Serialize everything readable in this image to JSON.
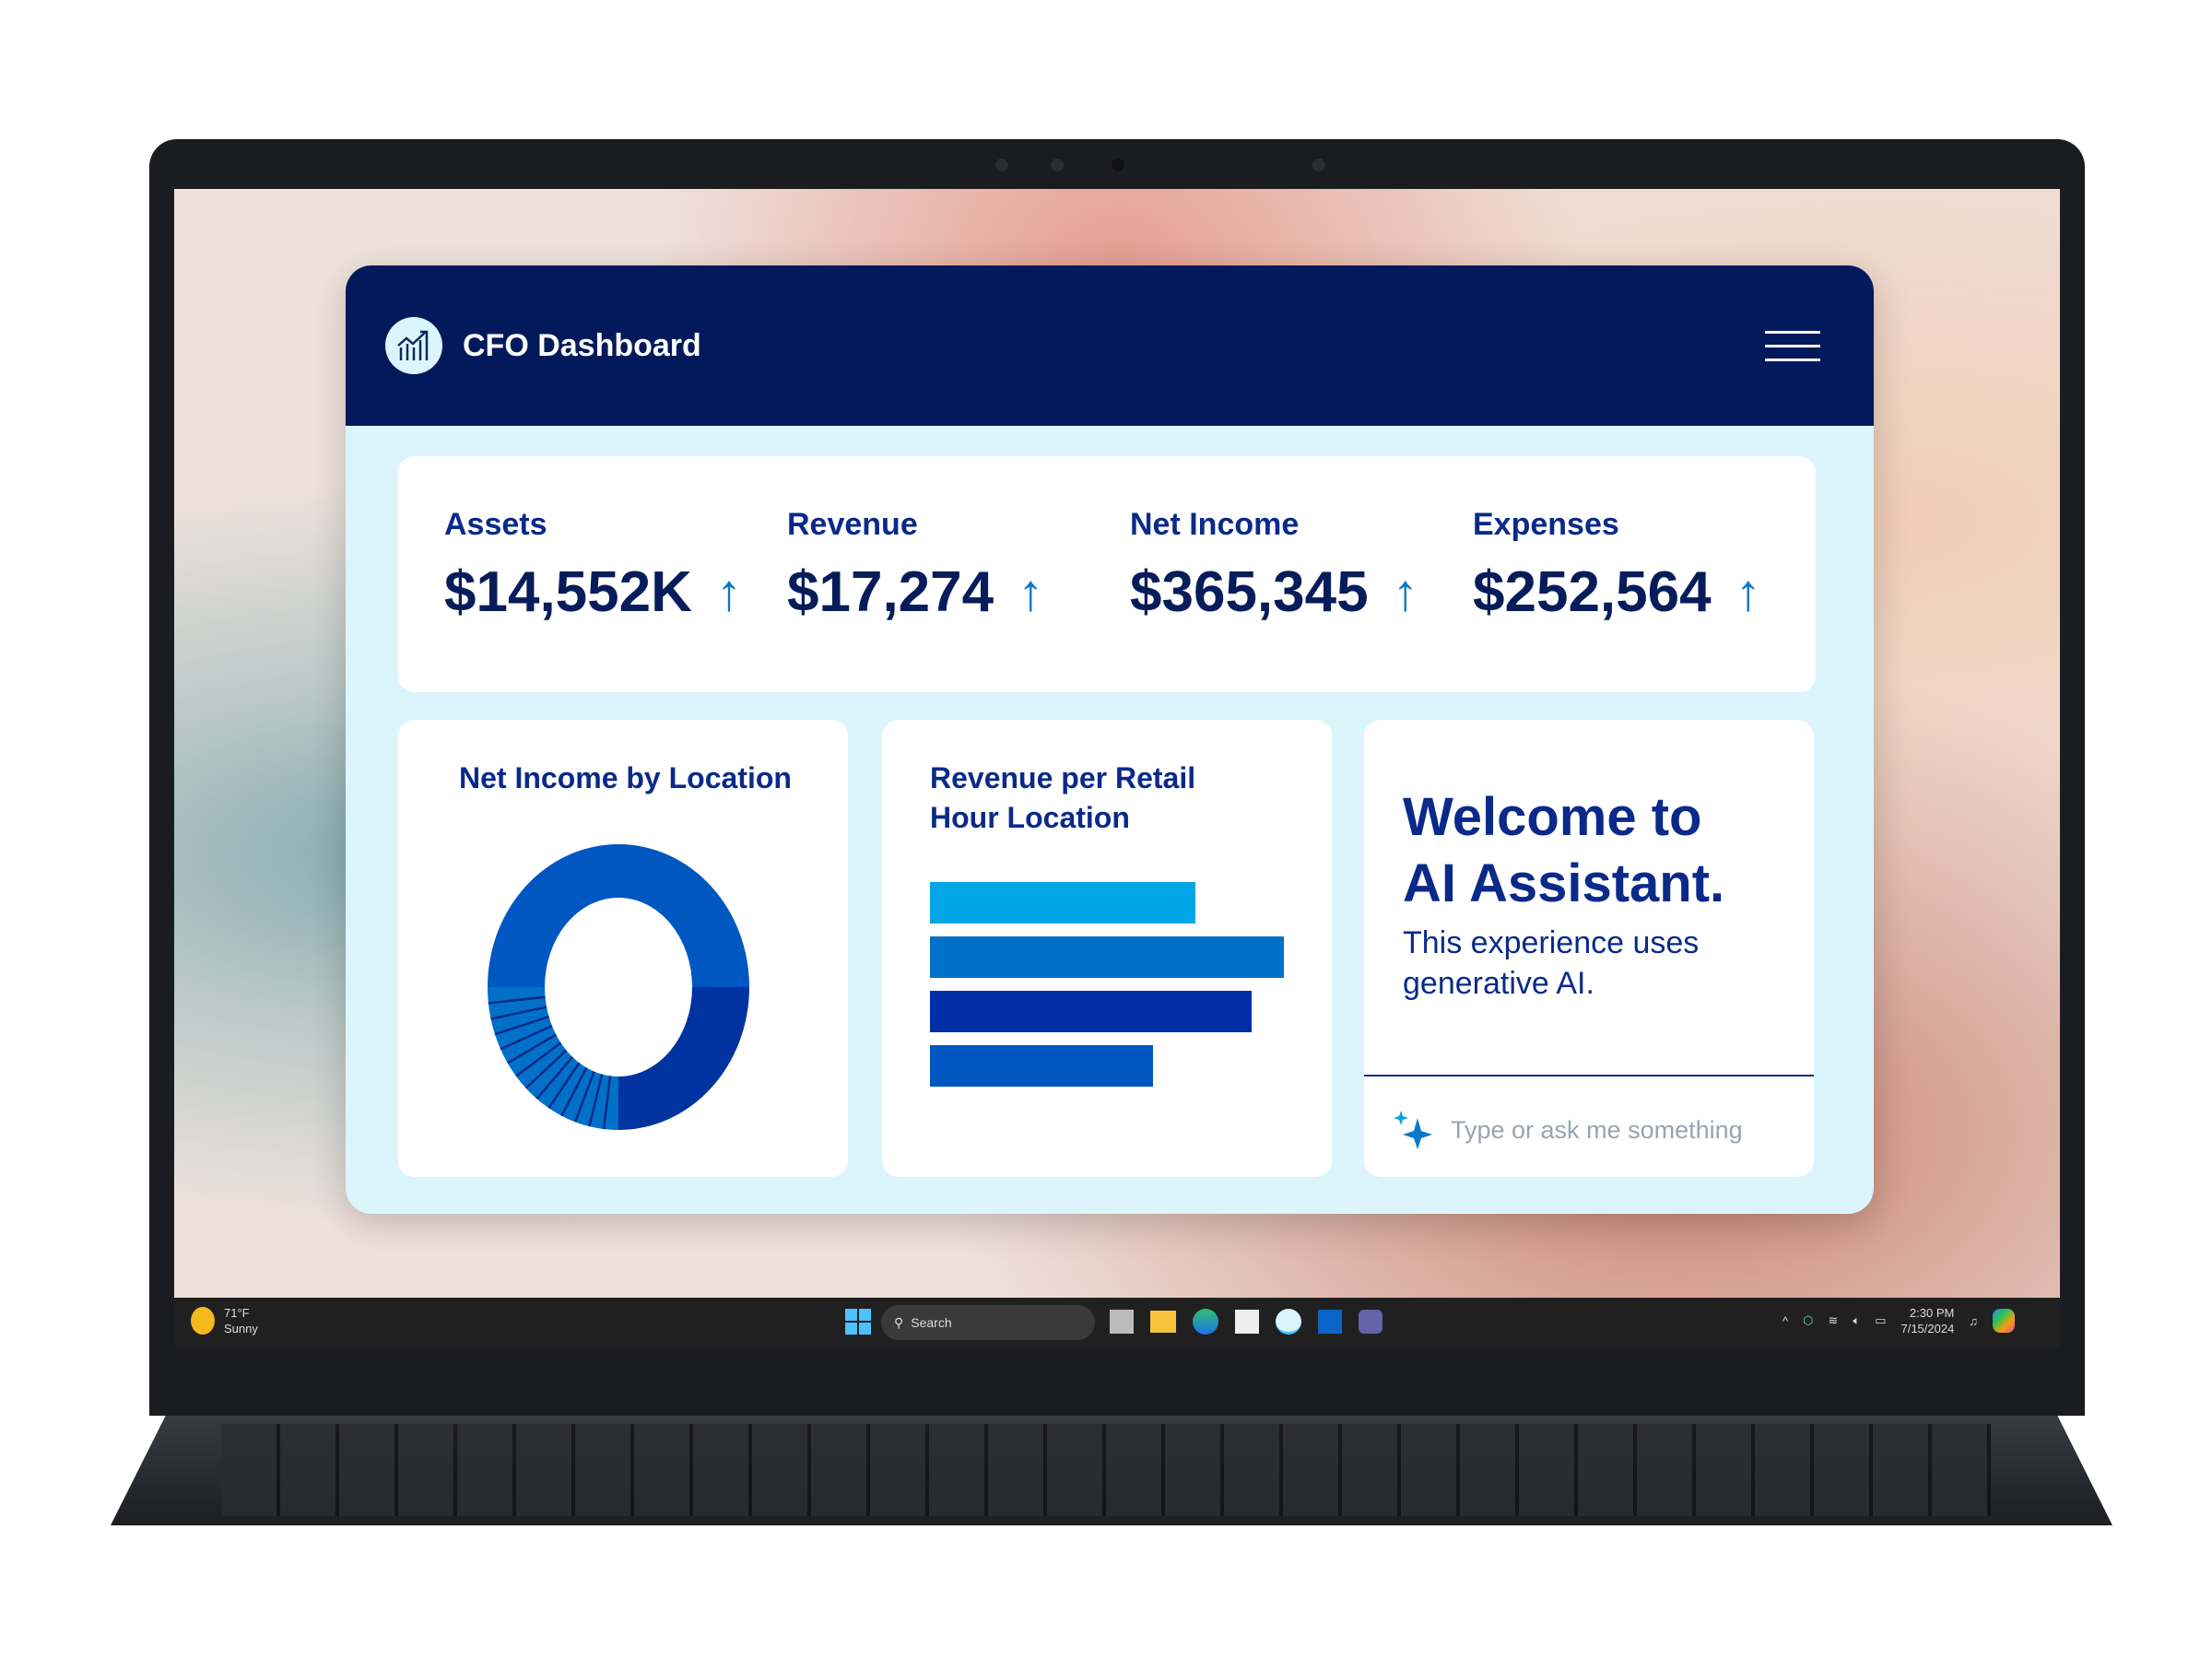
{
  "app": {
    "title": "CFO Dashboard",
    "logo_icon": "chart-growth-icon",
    "menu_icon": "hamburger-menu-icon"
  },
  "kpis": [
    {
      "label": "Assets",
      "value": "$14,552K",
      "trend": "up"
    },
    {
      "label": "Revenue",
      "value": "$17,274",
      "trend": "up"
    },
    {
      "label": "Net Income",
      "value": "$365,345",
      "trend": "up"
    },
    {
      "label": "Expenses",
      "value": "$252,564",
      "trend": "up"
    }
  ],
  "arrow_glyph": "↑",
  "chart_data": [
    {
      "type": "pie",
      "title": "Net Income by Location",
      "donut": true,
      "slices": [
        {
          "value": 50,
          "color": "#0057c2"
        },
        {
          "value": 25,
          "color": "#0033a0"
        },
        {
          "value": 25,
          "color": "#0070c8",
          "pattern": "striped"
        }
      ]
    },
    {
      "type": "bar",
      "orientation": "horizontal",
      "title": "Revenue per Retail Hour Location",
      "values": [
        75,
        100,
        91,
        63
      ],
      "colors": [
        "#00a6e6",
        "#0070c8",
        "#002ea6",
        "#0057c2"
      ]
    }
  ],
  "assistant": {
    "heading_line1": "Welcome to",
    "heading_line2": "AI Assistant.",
    "subtext": "This experience uses generative AI.",
    "placeholder": "Type or ask me something",
    "icon": "sparkle-icon"
  },
  "taskbar": {
    "weather_temp": "71°F",
    "weather_desc": "Sunny",
    "search_label": "Search",
    "time": "2:30 PM",
    "date": "7/15/2024"
  }
}
